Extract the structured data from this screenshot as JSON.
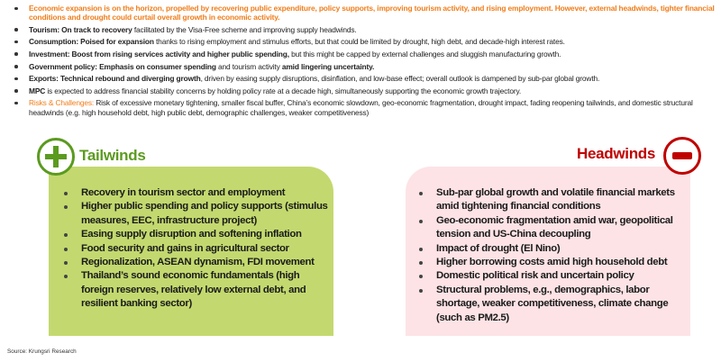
{
  "summary": [
    {
      "bold": "",
      "text": "Economic expansion is on the horizon, propelled by recovering public expenditure, policy supports, improving tourism activity, and rising employment. However, external headwinds, tighter financial conditions and drought could curtail overall growth in economic activity."
    },
    {
      "bold": "Tourism: On track to recovery",
      "text": " facilitated by the Visa-Free scheme and improving supply headwinds."
    },
    {
      "bold": "Consumption: Poised for expansion",
      "text": " thanks to rising employment and stimulus efforts, but that could be limited by drought, high debt, and decade-high interest rates."
    },
    {
      "bold": "Investment: Boost from rising services activity and higher public spending,",
      "text": " but this might be capped by external challenges and sluggish manufacturing growth."
    },
    {
      "bold": "Government policy: Emphasis on consumer spending",
      "text": " and tourism activity ",
      "bold2": "amid lingering uncertainty."
    },
    {
      "bold": "Exports: Technical rebound and diverging growth",
      "text": ", driven by easing supply disruptions, disinflation, and low-base effect; overall outlook is dampened by sub-par global growth."
    },
    {
      "bold": "MPC",
      "text": " is expected to address financial stability concerns by holding policy rate at a decade high, simultaneously supporting the economic growth trajectory."
    },
    {
      "bold": "Risks & Challenges:",
      "text": " Risk of excessive monetary tightening, smaller fiscal buffer, China’s economic slowdown, geo-economic fragmentation, drought impact, fading reopening tailwinds, and domestic structural headwinds (e.g. high household debt, high public debt, demographic challenges, weaker competitiveness)"
    }
  ],
  "tailwinds": {
    "title": "Tailwinds",
    "icon": "plus-circle-icon",
    "color": "#5b9a1f",
    "items": [
      "Recovery in tourism sector and employment",
      "Higher public spending and policy supports (stimulus measures, EEC, infrastructure project)",
      "Easing supply disruption and softening inflation",
      "Food security and gains in agricultural sector",
      "Regionalization, ASEAN dynamism, FDI movement",
      "Thailand’s sound economic fundamentals (high foreign reserves, relatively low external debt, and resilient banking sector)"
    ]
  },
  "headwinds": {
    "title": "Headwinds",
    "icon": "minus-circle-icon",
    "color": "#c00000",
    "items": [
      "Sub-par global growth and volatile financial markets amid tightening financial conditions",
      "Geo-economic fragmentation amid war, geopolitical tension and US-China decoupling",
      "Impact of drought (El Nino)",
      "Higher borrowing costs amid high household debt",
      "Domestic political risk and uncertain policy",
      "Structural problems, e.g., demographics, labor shortage, weaker competitiveness, climate change (such as PM2.5)"
    ]
  },
  "source": "Source: Krungsri Research"
}
